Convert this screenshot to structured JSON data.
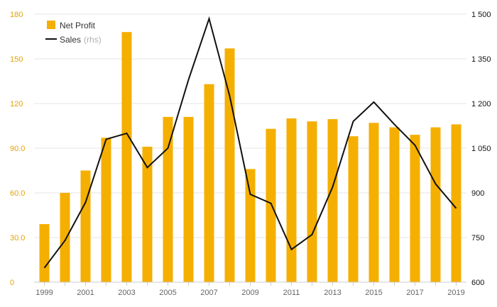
{
  "colors": {
    "bar": "#F5AF00",
    "line": "#111111",
    "left_axis_text": "#E6A200",
    "right_axis_text": "#111111",
    "x_axis_text": "#666666",
    "grid": "#e6e6e6",
    "rhs_note": "#b0b0b0"
  },
  "chart_data": {
    "type": "bar",
    "title": "",
    "xlabel": "",
    "ylabel": "",
    "grid": true,
    "legend_position": "top-left",
    "categories": [
      "1999",
      "2000",
      "2001",
      "2002",
      "2003",
      "2004",
      "2005",
      "2006",
      "2007",
      "2008",
      "2009",
      "2010",
      "2011",
      "2012",
      "2013",
      "2014",
      "2015",
      "2016",
      "2017",
      "2018",
      "2019"
    ],
    "x_tick_labels": [
      "1999",
      "2001",
      "2003",
      "2005",
      "2007",
      "2009",
      "2011",
      "2013",
      "2015",
      "2017",
      "2019"
    ],
    "left_axis": {
      "ylim": [
        0,
        180
      ],
      "ticks": [
        "0",
        "30.0",
        "60.0",
        "90.0",
        "120",
        "150",
        "180"
      ],
      "tick_values": [
        0,
        30,
        60,
        90,
        120,
        150,
        180
      ]
    },
    "right_axis": {
      "ylim": [
        600,
        1500
      ],
      "ticks": [
        "600",
        "750",
        "900",
        "1 050",
        "1 200",
        "1 350",
        "1 500"
      ],
      "tick_values": [
        600,
        750,
        900,
        1050,
        1200,
        1350,
        1500
      ]
    },
    "series": [
      {
        "name": "Net Profit",
        "type": "bar",
        "axis": "left",
        "values": [
          39,
          60,
          75,
          97,
          168,
          91,
          111,
          111,
          133,
          157,
          76,
          103,
          110,
          108,
          109.5,
          98,
          107,
          104,
          99,
          104,
          106
        ]
      },
      {
        "name": "Sales",
        "type": "line",
        "axis": "right",
        "values": [
          648,
          740,
          868,
          1080,
          1100,
          985,
          1050,
          1280,
          1485,
          1225,
          895,
          865,
          710,
          760,
          920,
          1140,
          1205,
          1130,
          1060,
          930,
          848
        ]
      }
    ],
    "legend": [
      {
        "label": "Net Profit",
        "marker": "bar"
      },
      {
        "label": "Sales",
        "marker": "line",
        "note": "(rhs)"
      }
    ]
  }
}
